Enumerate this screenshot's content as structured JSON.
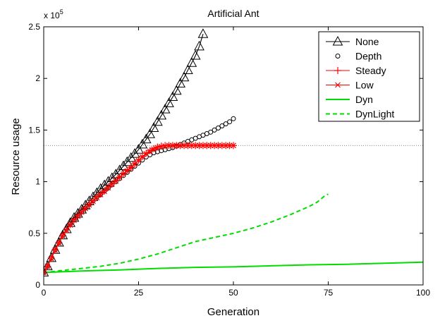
{
  "chart_data": {
    "type": "line",
    "title": "Artificial Ant",
    "xlabel": "Generation",
    "ylabel": "Resource usage",
    "y_multiplier_label": "x 10",
    "y_multiplier_exponent": "5",
    "xlim": [
      0,
      100
    ],
    "ylim": [
      0,
      250000
    ],
    "x_ticks": [
      0,
      25,
      50,
      75,
      100
    ],
    "x_tick_labels": [
      "0",
      "25",
      "50",
      "75",
      "100"
    ],
    "y_ticks": [
      0,
      50000,
      100000,
      150000,
      200000,
      250000
    ],
    "y_tick_labels": [
      "0",
      "0.5",
      "1",
      "1.5",
      "2",
      "2.5"
    ],
    "grid": false,
    "legend_position": "top-right",
    "reference_line": {
      "y": 135000,
      "style": "dotted",
      "color": "#888888"
    },
    "series": [
      {
        "name": "None",
        "color": "#000000",
        "marker": "triangle",
        "line": "solid",
        "x": [
          0,
          1,
          2,
          3,
          4,
          5,
          6,
          7,
          8,
          9,
          10,
          11,
          12,
          13,
          14,
          15,
          16,
          17,
          18,
          19,
          20,
          21,
          22,
          23,
          24,
          25,
          26,
          27,
          28,
          29,
          30,
          31,
          32,
          33,
          34,
          35,
          36,
          37,
          38,
          39,
          40,
          41,
          42
        ],
        "y": [
          12000,
          18000,
          26000,
          34000,
          41000,
          48000,
          54000,
          60000,
          65000,
          69000,
          73000,
          77000,
          81000,
          85000,
          89000,
          93000,
          96500,
          100000,
          103500,
          107000,
          111000,
          115000,
          119000,
          123000,
          127000,
          131000,
          136000,
          141000,
          146000,
          152000,
          158000,
          164000,
          170000,
          176000,
          182000,
          188000,
          195000,
          201000,
          208000,
          215000,
          222000,
          231000,
          243000
        ]
      },
      {
        "name": "Depth",
        "color": "#000000",
        "marker": "circle",
        "line": "none",
        "x": [
          0,
          1,
          2,
          3,
          4,
          5,
          6,
          7,
          8,
          9,
          10,
          11,
          12,
          13,
          14,
          15,
          16,
          17,
          18,
          19,
          20,
          21,
          22,
          23,
          24,
          25,
          26,
          27,
          28,
          29,
          30,
          31,
          32,
          33,
          34,
          35,
          36,
          37,
          38,
          39,
          40,
          41,
          42,
          43,
          44,
          45,
          46,
          47,
          48,
          49,
          50
        ],
        "y": [
          12000,
          18000,
          26000,
          34000,
          41000,
          48000,
          54000,
          59000,
          63000,
          67000,
          71000,
          74500,
          78000,
          81500,
          85000,
          88000,
          91000,
          94000,
          97000,
          100000,
          103000,
          106000,
          109000,
          112000,
          115000,
          118000,
          121000,
          124000,
          126000,
          128000,
          129000,
          130000,
          131000,
          132000,
          133000,
          134500,
          136000,
          137500,
          139000,
          140500,
          142000,
          143500,
          145000,
          146500,
          148000,
          150000,
          152000,
          154000,
          156000,
          158000,
          161000
        ]
      },
      {
        "name": "Steady",
        "color": "#ff0000",
        "marker": "plus",
        "line": "solid",
        "x": [
          0,
          1,
          2,
          3,
          4,
          5,
          6,
          7,
          8,
          9,
          10,
          11,
          12,
          13,
          14,
          15,
          16,
          17,
          18,
          19,
          20,
          21,
          22,
          23,
          24,
          25,
          26,
          27,
          28,
          29,
          30,
          31,
          32,
          33,
          34,
          35,
          36,
          37,
          38,
          39,
          40,
          41,
          42,
          43,
          44,
          45,
          46,
          47,
          48,
          49,
          50
        ],
        "y": [
          12000,
          18000,
          26000,
          34000,
          41000,
          48000,
          53500,
          58500,
          63000,
          67000,
          71000,
          74500,
          78000,
          81500,
          85000,
          88000,
          91000,
          94500,
          98000,
          101000,
          104500,
          108000,
          111000,
          114000,
          117500,
          121000,
          124500,
          127500,
          130000,
          132000,
          133500,
          134500,
          135000,
          135000,
          135000,
          135000,
          135000,
          135000,
          135000,
          135000,
          135000,
          135000,
          135000,
          135000,
          135000,
          135000,
          135000,
          135000,
          135000,
          135000,
          135000
        ]
      },
      {
        "name": "Low",
        "color": "#ff0000",
        "marker": "x",
        "line": "solid",
        "x": [
          0,
          1,
          2,
          3,
          4,
          5,
          6,
          7,
          8,
          9,
          10,
          11,
          12,
          13,
          14,
          15,
          16,
          17,
          18,
          19,
          20,
          21,
          22,
          23,
          24,
          25,
          26,
          27,
          28,
          29,
          30,
          31,
          32,
          33,
          34,
          35,
          36,
          37,
          38,
          39,
          40,
          41,
          42,
          43,
          44,
          45,
          46,
          47,
          48,
          49,
          50
        ],
        "y": [
          12000,
          18000,
          25500,
          33500,
          40500,
          47500,
          53000,
          58000,
          62500,
          66500,
          70500,
          74000,
          77500,
          81000,
          84500,
          87500,
          90500,
          94000,
          97500,
          100500,
          104000,
          107500,
          110500,
          113500,
          117000,
          120500,
          124000,
          127000,
          129500,
          131500,
          133000,
          134000,
          134500,
          135000,
          135000,
          135000,
          135000,
          135000,
          135000,
          135000,
          135000,
          135000,
          135000,
          135000,
          135000,
          135000,
          135000,
          135000,
          135000,
          135000,
          135000
        ]
      },
      {
        "name": "Dyn",
        "color": "#00dd00",
        "marker": "none",
        "line": "solid",
        "x": [
          0,
          10,
          20,
          30,
          40,
          50,
          60,
          70,
          80,
          90,
          100
        ],
        "y": [
          12000,
          13500,
          14500,
          16000,
          17000,
          17500,
          18500,
          19500,
          20000,
          21000,
          22000
        ]
      },
      {
        "name": "DynLight",
        "color": "#00dd00",
        "marker": "none",
        "line": "dashed",
        "x": [
          0,
          5,
          10,
          15,
          20,
          25,
          30,
          35,
          40,
          45,
          50,
          55,
          60,
          65,
          70,
          72,
          74,
          75
        ],
        "y": [
          12000,
          14000,
          16000,
          18000,
          21000,
          25000,
          30000,
          36000,
          42000,
          46000,
          50000,
          55000,
          61000,
          68000,
          76000,
          80000,
          86000,
          88000
        ]
      }
    ]
  }
}
